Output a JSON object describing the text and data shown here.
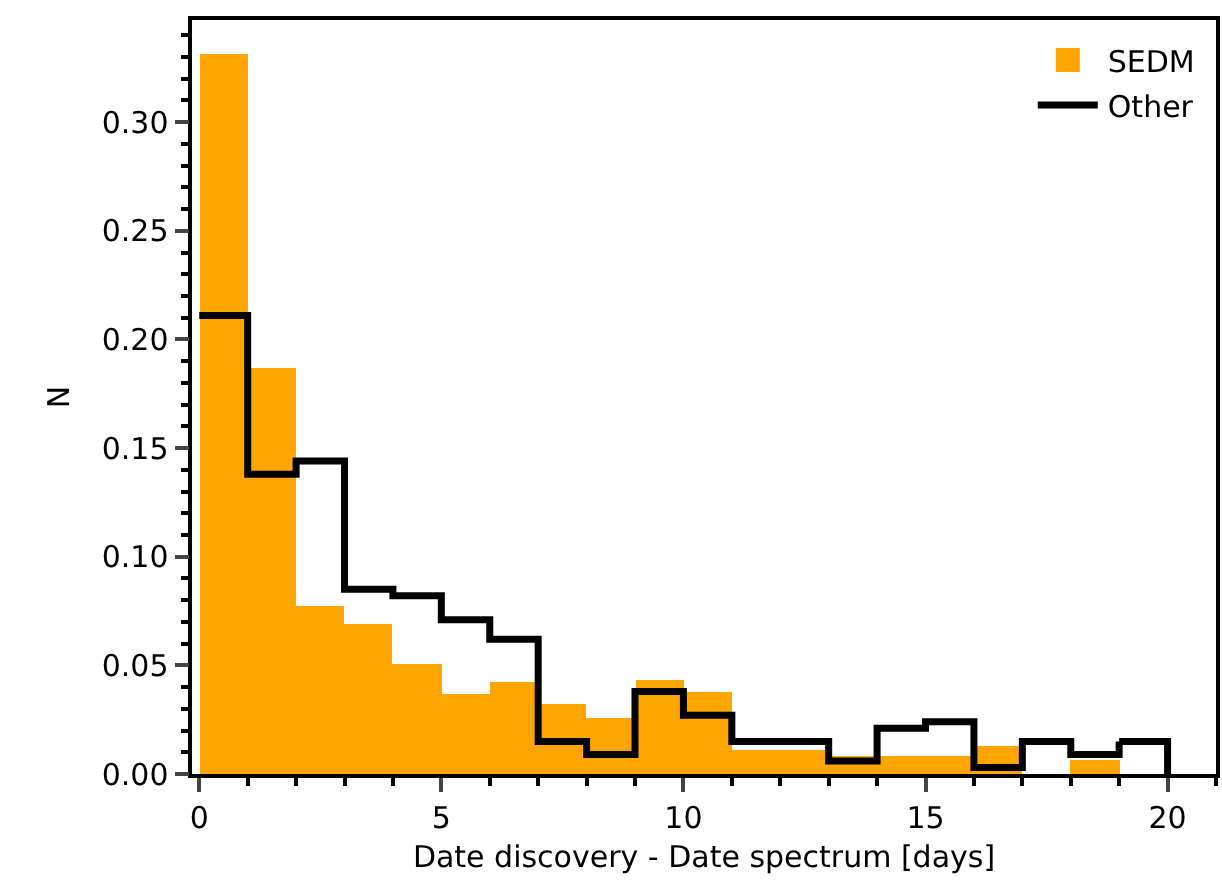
{
  "chart_data": {
    "type": "histogram",
    "xlabel": "Date discovery - Date spectrum [days]",
    "ylabel": "N",
    "bins": [
      0,
      1,
      2,
      3,
      4,
      5,
      6,
      7,
      8,
      9,
      10,
      11,
      12,
      13,
      14,
      15,
      16,
      17,
      18,
      19,
      20
    ],
    "series": [
      {
        "name": "SEDM",
        "color": "#ffa500",
        "values": [
          0.331,
          0.187,
          0.077,
          0.069,
          0.051,
          0.037,
          0.042,
          0.032,
          0.026,
          0.043,
          0.038,
          0.011,
          0.011,
          0.008,
          0.008,
          0.008,
          0.013,
          0,
          0.006,
          0
        ]
      },
      {
        "name": "Other",
        "type": "step",
        "color": "#000000",
        "x": [
          0,
          1,
          2,
          3,
          4,
          5,
          6,
          7,
          8,
          9,
          10,
          11,
          12,
          13,
          14,
          15,
          16,
          17,
          18,
          19
        ],
        "values": [
          0.211,
          0.138,
          0.144,
          0.085,
          0.082,
          0.071,
          0.062,
          0.015,
          0.009,
          0.038,
          0.027,
          0.015,
          0.015,
          0.006,
          0.021,
          0.024,
          0.003,
          0.015,
          0.009,
          0.015
        ]
      }
    ],
    "xlim": [
      -0.15,
      21
    ],
    "xticks": [
      0,
      5,
      10,
      15,
      20
    ],
    "ylim": [
      0,
      0.347
    ],
    "yticks": [
      {
        "value": 0,
        "label": "0.00"
      },
      {
        "value": 0.05,
        "label": "0.05"
      },
      {
        "value": 0.1,
        "label": "0.10"
      },
      {
        "value": 0.15,
        "label": "0.15"
      },
      {
        "value": 0.2,
        "label": "0.20"
      },
      {
        "value": 0.25,
        "label": "0.25"
      },
      {
        "value": 0.3,
        "label": "0.30"
      }
    ],
    "grid": false,
    "legend": "top right"
  }
}
